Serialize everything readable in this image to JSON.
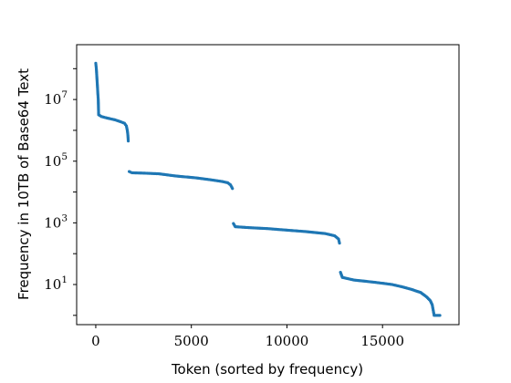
{
  "chart_data": {
    "type": "scatter",
    "title": "",
    "xlabel": "Token (sorted by frequency)",
    "ylabel": "Frequency in 10TB of Base64 Text",
    "x_scale": "linear",
    "y_scale": "log",
    "xlim": [
      -1000,
      19000
    ],
    "ylim": [
      0.5,
      600000000
    ],
    "x_ticks": [
      0,
      5000,
      10000,
      15000
    ],
    "x_tick_labels": [
      "0",
      "5000",
      "10000",
      "15000"
    ],
    "y_ticks": [
      10,
      1000,
      100000,
      10000000
    ],
    "y_tick_labels": [
      {
        "base": "10",
        "exp": "1"
      },
      {
        "base": "10",
        "exp": "3"
      },
      {
        "base": "10",
        "exp": "5"
      },
      {
        "base": "10",
        "exp": "7"
      }
    ],
    "grid": false,
    "legend": "none",
    "series_color": "#1f77b4",
    "series": [
      {
        "points": [
          [
            0,
            150000000
          ],
          [
            30,
            100000000
          ],
          [
            60,
            50000000
          ],
          [
            90,
            25000000
          ],
          [
            110,
            15000000
          ],
          [
            130,
            10000000
          ],
          [
            150,
            3200000
          ],
          [
            300,
            2800000
          ],
          [
            600,
            2500000
          ],
          [
            1000,
            2200000
          ],
          [
            1300,
            1900000
          ],
          [
            1500,
            1700000
          ],
          [
            1600,
            1400000
          ],
          [
            1650,
            1000000
          ],
          [
            1680,
            700000
          ],
          [
            1700,
            450000
          ],
          [
            1750,
            46000
          ],
          [
            1900,
            42000
          ],
          [
            2500,
            41000
          ],
          [
            3300,
            39000
          ],
          [
            4200,
            33000
          ],
          [
            5200,
            29000
          ],
          [
            6000,
            25000
          ],
          [
            6600,
            22000
          ],
          [
            6900,
            20000
          ],
          [
            7050,
            17000
          ],
          [
            7150,
            13000
          ],
          [
            7200,
            950
          ],
          [
            7300,
            750
          ],
          [
            8000,
            700
          ],
          [
            9000,
            650
          ],
          [
            10000,
            580
          ],
          [
            11000,
            520
          ],
          [
            12000,
            450
          ],
          [
            12500,
            380
          ],
          [
            12700,
            300
          ],
          [
            12750,
            220
          ],
          [
            12800,
            25
          ],
          [
            12900,
            17
          ],
          [
            13500,
            14
          ],
          [
            14500,
            12
          ],
          [
            15000,
            11
          ],
          [
            15500,
            10
          ],
          [
            16000,
            8.5
          ],
          [
            16500,
            7
          ],
          [
            17000,
            5.5
          ],
          [
            17300,
            4
          ],
          [
            17500,
            3
          ],
          [
            17600,
            2.2
          ],
          [
            17700,
            1
          ],
          [
            18000,
            1
          ]
        ]
      }
    ]
  }
}
